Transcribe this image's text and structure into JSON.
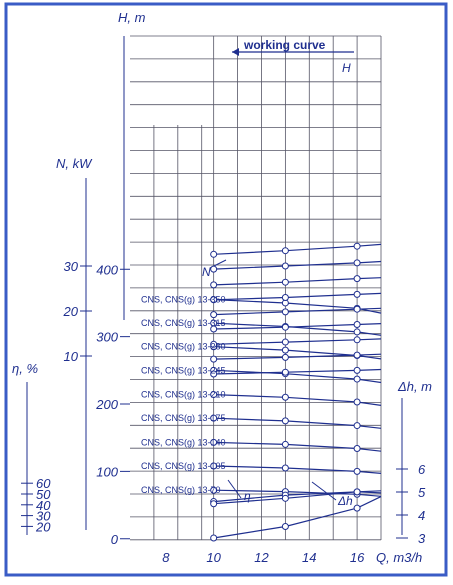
{
  "colors": {
    "ink": "#1f2f8f",
    "grid": "#555566",
    "frame": "#3a5cc6",
    "paper": "#ffffff"
  },
  "chart_data": {
    "type": "line",
    "x_axis": {
      "label": "Q, m3/h",
      "ticks": [
        8,
        10,
        12,
        14,
        16
      ],
      "range": [
        6.5,
        17
      ]
    },
    "y_axes": {
      "head": {
        "label": "H, m",
        "ticks": [
          0,
          100,
          200,
          300,
          400
        ],
        "tick_labels": [
          "0",
          "100",
          "200",
          "300",
          "400"
        ]
      },
      "power": {
        "label": "N, kW",
        "ticks": [
          10,
          20,
          30
        ],
        "tick_labels": [
          "10",
          "20",
          "30"
        ]
      },
      "efficiency": {
        "label": "η, %",
        "ticks": [
          20,
          30,
          40,
          50,
          60
        ],
        "tick_labels": [
          "20",
          "30",
          "40",
          "50",
          "60"
        ]
      },
      "npsh": {
        "label": "Δh, m",
        "ticks": [
          3,
          4,
          5,
          6
        ],
        "tick_labels": [
          "3",
          "4",
          "5",
          "6"
        ]
      }
    },
    "working_curve_label": "working curve",
    "curve_labels": {
      "head": "H",
      "power": "N",
      "efficiency": "η",
      "npsh": "Δh"
    },
    "model_labels": [
      "CNS, CNS(g) 13-350",
      "CNS, CNS(g) 13-315",
      "CNS, CNS(g) 13-280",
      "CNS, CNS(g) 13-245",
      "CNS, CNS(g) 13-210",
      "CNS, CNS(g) 13-175",
      "CNS, CNS(g) 13-140",
      "CNS, CNS(g) 13-105",
      "CNS, CNS(g) 13-70"
    ],
    "working_points_Q": [
      10,
      13,
      16
    ],
    "head_series": [
      {
        "name": "CNS, CNS(g) 13-350",
        "x": [
          10,
          13,
          16,
          17
        ],
        "y": [
          355,
          350,
          342,
          335
        ]
      },
      {
        "name": "CNS, CNS(g) 13-315",
        "x": [
          10,
          13,
          16,
          17
        ],
        "y": [
          320,
          315,
          307,
          302
        ]
      },
      {
        "name": "CNS, CNS(g) 13-280",
        "x": [
          10,
          13,
          16,
          17
        ],
        "y": [
          285,
          280,
          272,
          267
        ]
      },
      {
        "name": "CNS, CNS(g) 13-245",
        "x": [
          10,
          13,
          16,
          17
        ],
        "y": [
          250,
          245,
          237,
          232
        ]
      },
      {
        "name": "CNS, CNS(g) 13-210",
        "x": [
          10,
          13,
          16,
          17
        ],
        "y": [
          214,
          210,
          203,
          198
        ]
      },
      {
        "name": "CNS, CNS(g) 13-175",
        "x": [
          10,
          13,
          16,
          17
        ],
        "y": [
          179,
          175,
          168,
          164
        ]
      },
      {
        "name": "CNS, CNS(g) 13-140",
        "x": [
          10,
          13,
          16,
          17
        ],
        "y": [
          143,
          140,
          134,
          130
        ]
      },
      {
        "name": "CNS, CNS(g) 13-105",
        "x": [
          10,
          13,
          16,
          17
        ],
        "y": [
          108,
          105,
          100,
          97
        ]
      },
      {
        "name": "CNS, CNS(g) 13-70",
        "x": [
          10,
          13,
          16,
          17
        ],
        "y": [
          72,
          70,
          66,
          63
        ]
      }
    ],
    "power_series": [
      {
        "x": [
          10,
          13,
          16,
          17
        ],
        "y": [
          32.6,
          33.4,
          34.4,
          34.8
        ]
      },
      {
        "x": [
          10,
          13,
          16,
          17
        ],
        "y": [
          29.3,
          30.0,
          30.7,
          31.0
        ]
      },
      {
        "x": [
          10,
          13,
          16,
          17
        ],
        "y": [
          25.8,
          26.4,
          27.2,
          27.4
        ]
      },
      {
        "x": [
          10,
          13,
          16,
          17
        ],
        "y": [
          22.5,
          23.0,
          23.7,
          23.9
        ]
      },
      {
        "x": [
          10,
          13,
          16,
          17
        ],
        "y": [
          19.2,
          19.8,
          20.4,
          20.6
        ]
      },
      {
        "x": [
          10,
          13,
          16,
          17
        ],
        "y": [
          16.0,
          16.4,
          17.0,
          17.2
        ]
      },
      {
        "x": [
          10,
          13,
          16,
          17
        ],
        "y": [
          12.6,
          13.1,
          13.6,
          13.8
        ]
      },
      {
        "x": [
          10,
          13,
          16,
          17
        ],
        "y": [
          9.3,
          9.7,
          10.2,
          10.4
        ]
      },
      {
        "x": [
          10,
          13,
          16,
          17
        ],
        "y": [
          6.0,
          6.4,
          6.8,
          7.0
        ]
      }
    ],
    "efficiency_series": [
      {
        "x": [
          10,
          13,
          16,
          17
        ],
        "y": [
          43,
          49,
          52,
          51
        ]
      },
      {
        "x": [
          10,
          13,
          16,
          17
        ],
        "y": [
          41,
          46,
          52,
          53
        ]
      }
    ],
    "npsh_series": [
      {
        "x": [
          10,
          13,
          16,
          17
        ],
        "y": [
          3.0,
          3.5,
          4.3,
          4.8
        ]
      }
    ]
  }
}
